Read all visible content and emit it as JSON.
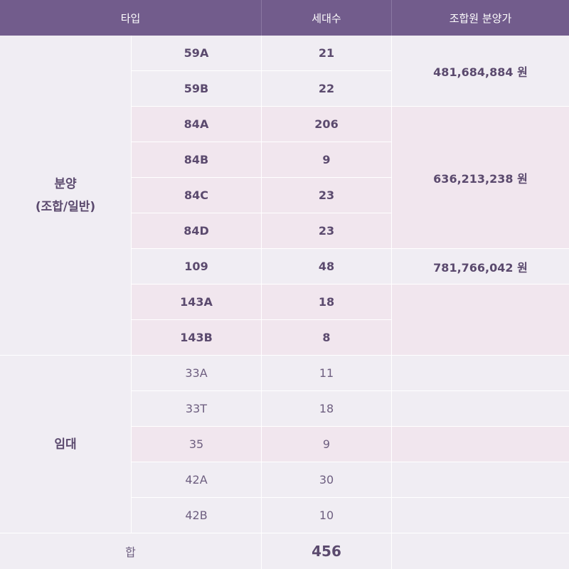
{
  "header": {
    "type": "타입",
    "households": "세대수",
    "price": "조합원 분양가"
  },
  "categories": {
    "sale_line1": "분양",
    "sale_line2": "(조합/일반)",
    "rent": "임대"
  },
  "sale_rows": [
    {
      "type": "59A",
      "count": "21"
    },
    {
      "type": "59B",
      "count": "22"
    },
    {
      "type": "84A",
      "count": "206"
    },
    {
      "type": "84B",
      "count": "9"
    },
    {
      "type": "84C",
      "count": "23"
    },
    {
      "type": "84D",
      "count": "23"
    },
    {
      "type": "109",
      "count": "48"
    },
    {
      "type": "143A",
      "count": "18"
    },
    {
      "type": "143B",
      "count": "8"
    }
  ],
  "prices": {
    "p59": "481,684,884 원",
    "p84": "636,213,238 원",
    "p109": "781,766,042 원"
  },
  "rent_rows": [
    {
      "type": "33A",
      "count": "11"
    },
    {
      "type": "33T",
      "count": "18"
    },
    {
      "type": "35",
      "count": "9"
    },
    {
      "type": "42A",
      "count": "30"
    },
    {
      "type": "42B",
      "count": "10"
    }
  ],
  "footer": {
    "label": "합",
    "total": "456"
  },
  "colors": {
    "header_bg": "#725c8c",
    "body_bg": "#f0edf3",
    "highlight_bg": "#f1e6ee",
    "text": "#5b4a6e"
  }
}
